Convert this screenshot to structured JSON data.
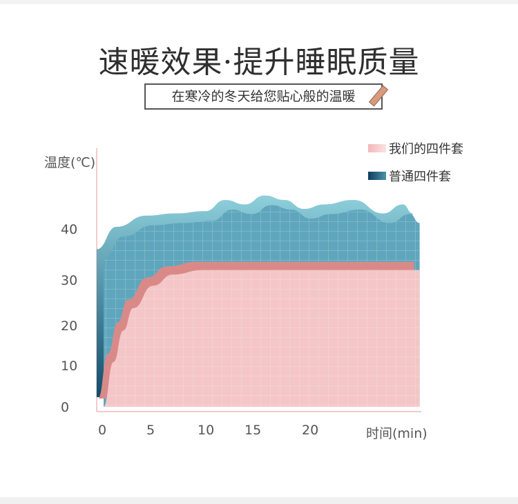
{
  "header": {
    "title": "速暖效果·提升睡眠质量",
    "subtitle": "在寒冷的冬天给您贴心般的温暖",
    "subtitle_icon": "pencil-icon"
  },
  "chart_data": {
    "type": "area",
    "ylabel": "温度(℃)",
    "xlabel": "时间(min)",
    "yticks": [
      "0",
      "10",
      "20",
      "30",
      "40"
    ],
    "xticks": [
      "0",
      "5",
      "10",
      "15",
      "20"
    ],
    "xlim": [
      0,
      32
    ],
    "ylim": [
      0,
      48
    ],
    "grid": true,
    "legend_position": "top-right",
    "series": [
      {
        "name": "我们的四件套",
        "color": "#f4c6c8",
        "edge": "#d98a88",
        "x": [
          0,
          1,
          2,
          3,
          5,
          7,
          10,
          15,
          20,
          25,
          32
        ],
        "y": [
          0,
          10,
          17,
          22,
          27,
          29.5,
          30.5,
          30.5,
          30.5,
          30.5,
          30.5
        ]
      },
      {
        "name": "普通四件套",
        "color": "#5fa6bd",
        "edge": "#2b7a94",
        "x": [
          0,
          2,
          5,
          8,
          11,
          13,
          15,
          17,
          19,
          21,
          23,
          26,
          29,
          31,
          32
        ],
        "y": [
          33,
          38,
          40.5,
          41,
          41.5,
          44,
          43,
          45,
          44,
          42,
          43,
          44,
          41,
          43,
          41
        ]
      }
    ]
  }
}
